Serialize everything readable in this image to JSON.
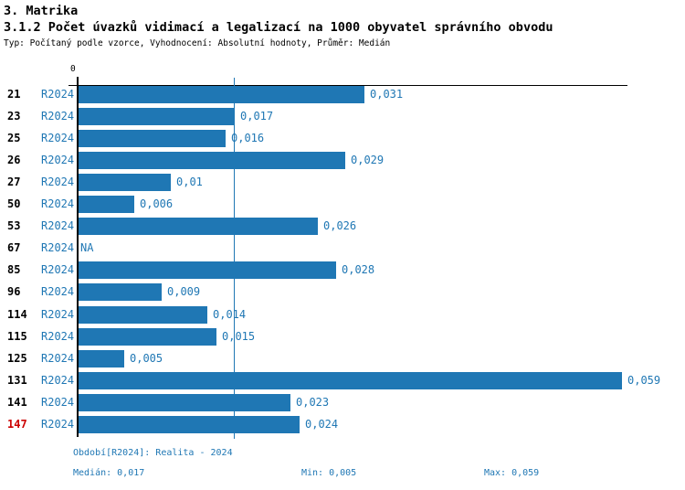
{
  "header": {
    "section": "3. Matrika",
    "title": "3.1.2 Počet úvazků vidimací a legalizací na 1000 obyvatel správního obvodu",
    "subtitle": "Typ: Počítaný podle vzorce, Vyhodnocení: Absolutní hodnoty, Průměr: Medián"
  },
  "chart_data": {
    "type": "bar",
    "orientation": "horizontal",
    "title": "3.1.2 Počet úvazků vidimací a legalizací na 1000 obyvatel správního obvodu",
    "series_label": "R2024",
    "axis_zero_label": "0",
    "categories": [
      "21",
      "23",
      "25",
      "26",
      "27",
      "50",
      "53",
      "67",
      "85",
      "96",
      "114",
      "115",
      "125",
      "131",
      "141",
      "147"
    ],
    "values": [
      0.031,
      0.017,
      0.016,
      0.029,
      0.01,
      0.006,
      0.026,
      null,
      0.028,
      0.009,
      0.014,
      0.015,
      0.005,
      0.059,
      0.023,
      0.024
    ],
    "value_labels": [
      "0,031",
      "0,017",
      "0,016",
      "0,029",
      "0,01",
      "0,006",
      "0,026",
      "NA",
      "0,028",
      "0,009",
      "0,014",
      "0,015",
      "0,005",
      "0,059",
      "0,023",
      "0,024"
    ],
    "highlighted_category": "147",
    "median_line_value": 0.017,
    "xlim": [
      0,
      0.059
    ],
    "bar_color": "#1f77b4",
    "label_color": "#1f77b4",
    "category_color": "#000000",
    "highlight_color": "#cc0000",
    "grid": false,
    "legend_position": "none"
  },
  "footer": {
    "period": "Období[R2024]: Realita - 2024",
    "median": "Medián: 0,017",
    "min": "Min: 0,005",
    "max": "Max: 0,059"
  }
}
